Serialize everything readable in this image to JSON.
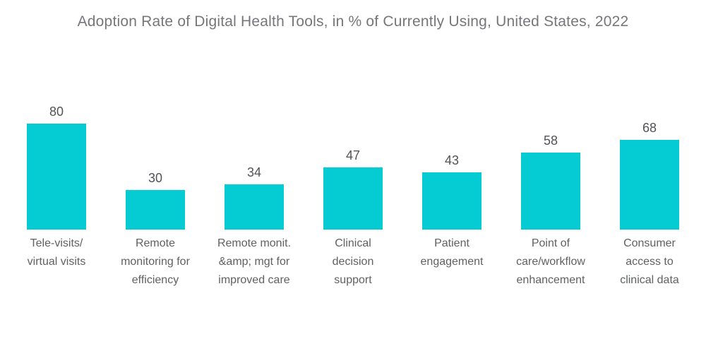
{
  "chart_data": {
    "type": "bar",
    "title": "Adoption Rate of Digital Health Tools, in % of Currently Using, United States, 2022",
    "categories": [
      "Tele-visits/\nvirtual visits",
      "Remote\nmonitoring for\nefficiency",
      "Remote monit.\n&amp; mgt for\nimproved care",
      "Clinical\ndecision\nsupport",
      "Patient\nengagement",
      "Point of\ncare/workflow\nenhancement",
      "Consumer\naccess to\nclinical data"
    ],
    "values": [
      80,
      30,
      34,
      47,
      43,
      58,
      68
    ],
    "xlabel": "",
    "ylabel": "",
    "ylim": [
      0,
      100
    ],
    "grid": false,
    "legend": "none",
    "value_labels_shown": true,
    "bar_color": "#05cbd2",
    "title_color": "#76777b",
    "label_color": "#5f6163",
    "value_label_color": "#515356",
    "background_color": "#ffffff"
  }
}
